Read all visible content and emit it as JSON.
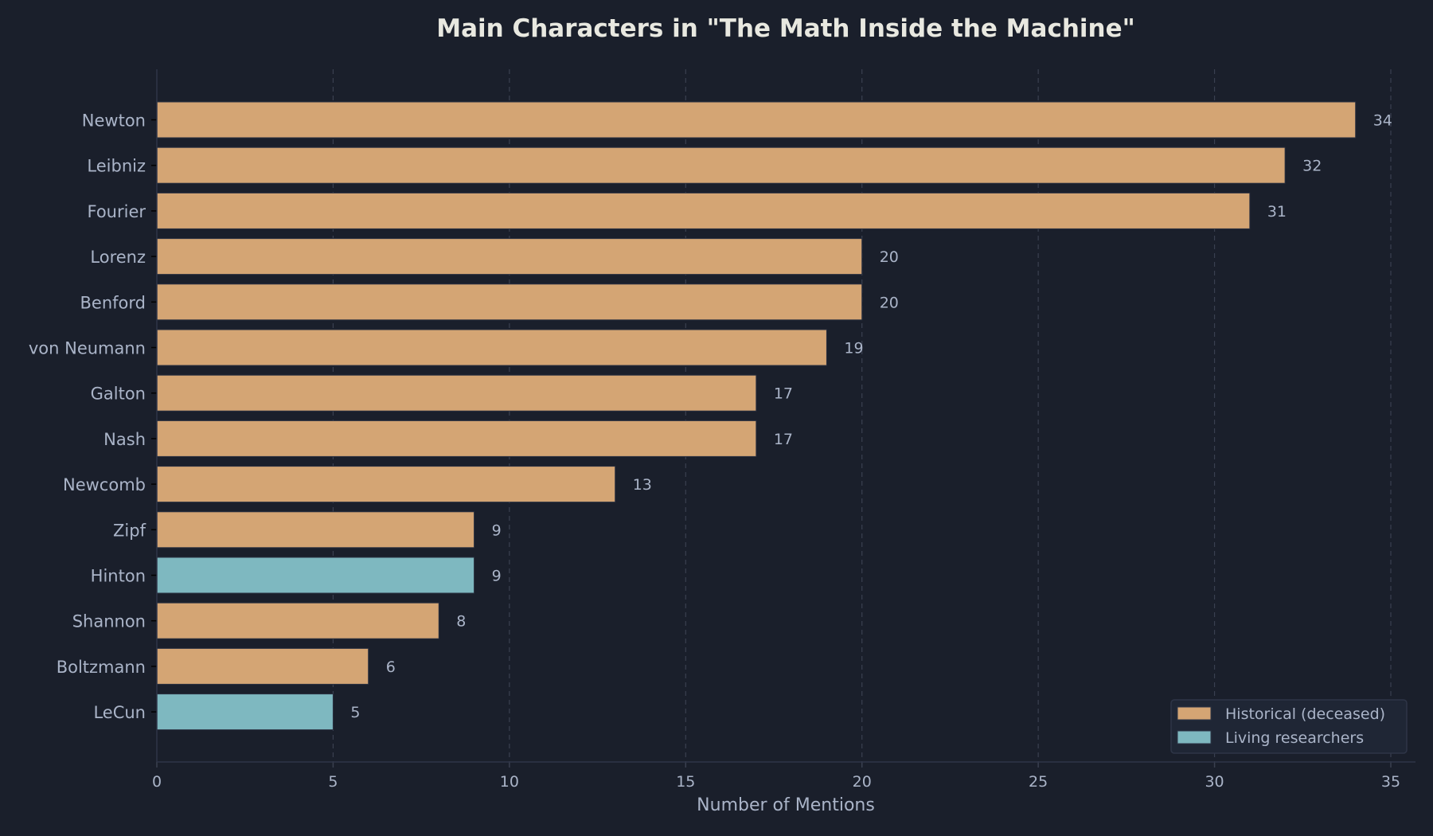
{
  "chart_data": {
    "type": "bar",
    "orientation": "horizontal",
    "title": "Main Characters in \"The Math Inside the Machine\"",
    "xlabel": "Number of Mentions",
    "ylabel": "",
    "xlim": [
      0,
      35.7
    ],
    "xticks": [
      0,
      5,
      10,
      15,
      20,
      25,
      30,
      35
    ],
    "grid": "vertical dashed",
    "legend_placement": "bottom-right",
    "categories": [
      "Newton",
      "Leibniz",
      "Fourier",
      "Lorenz",
      "Benford",
      "von Neumann",
      "Galton",
      "Nash",
      "Newcomb",
      "Zipf",
      "Hinton",
      "Shannon",
      "Boltzmann",
      "LeCun"
    ],
    "values": [
      34,
      32,
      31,
      20,
      20,
      19,
      17,
      17,
      13,
      9,
      9,
      8,
      6,
      5
    ],
    "groups": [
      "historical",
      "historical",
      "historical",
      "historical",
      "historical",
      "historical",
      "historical",
      "historical",
      "historical",
      "historical",
      "living",
      "historical",
      "historical",
      "living"
    ],
    "legend": [
      {
        "key": "historical",
        "label": "Historical (deceased)",
        "color": "#d4a574"
      },
      {
        "key": "living",
        "label": "Living researchers",
        "color": "#7eb8c0"
      }
    ],
    "colors": {
      "background": "#1a1f2b",
      "text": "#aab4c8",
      "title": "#e8e8e0",
      "grid": "#3a4050"
    }
  }
}
